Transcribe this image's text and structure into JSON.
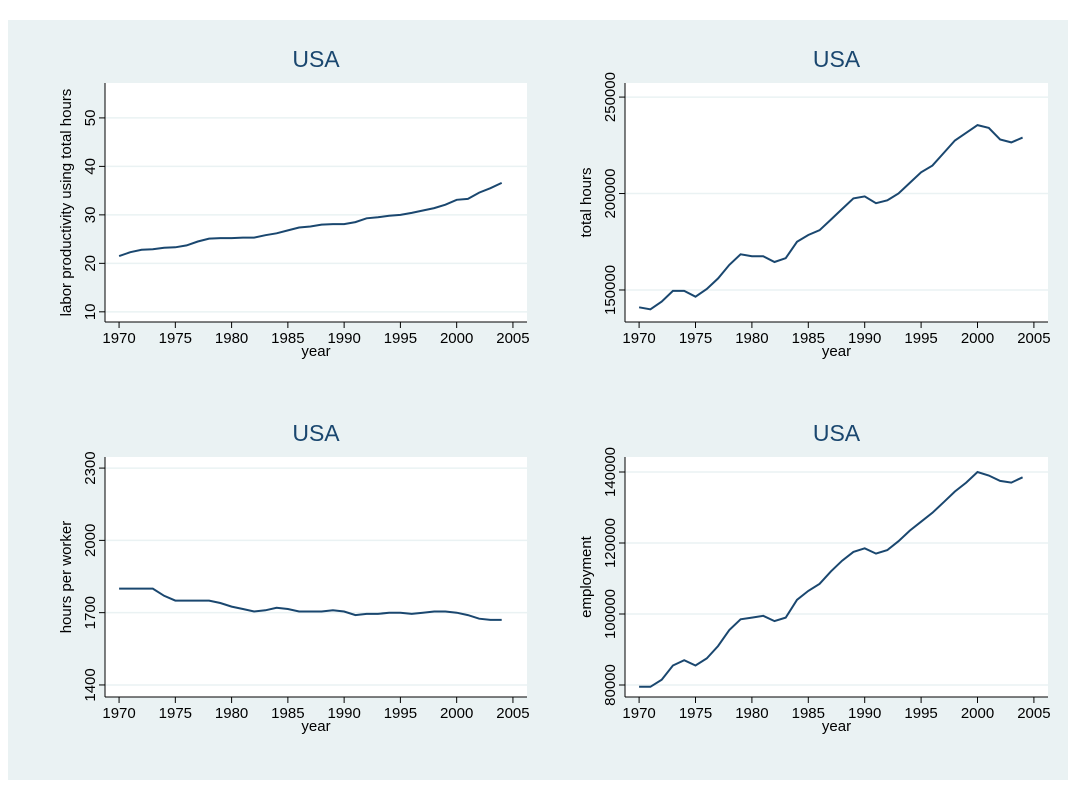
{
  "chart_data": [
    {
      "type": "line",
      "title": "USA",
      "x_label": "year",
      "y_label": "labor productivity using total hours",
      "x": [
        1970,
        1971,
        1972,
        1973,
        1974,
        1975,
        1976,
        1977,
        1978,
        1979,
        1980,
        1981,
        1982,
        1983,
        1984,
        1985,
        1986,
        1987,
        1988,
        1989,
        1990,
        1991,
        1992,
        1993,
        1994,
        1995,
        1996,
        1997,
        1998,
        1999,
        2000,
        2001,
        2002,
        2003,
        2004
      ],
      "values": [
        21.5,
        22.3,
        22.8,
        22.9,
        23.2,
        23.3,
        23.7,
        24.5,
        25.1,
        25.2,
        25.2,
        25.3,
        25.3,
        25.8,
        26.2,
        26.8,
        27.4,
        27.6,
        28.0,
        28.1,
        28.1,
        28.5,
        29.3,
        29.5,
        29.8,
        30.0,
        30.4,
        30.9,
        31.4,
        32.1,
        33.1,
        33.3,
        34.6,
        35.5,
        36.6
      ],
      "color": "#1a476f",
      "xlim": [
        1968.75,
        2006.25
      ],
      "xticks": [
        1970,
        1975,
        1980,
        1985,
        1990,
        1995,
        2000,
        2005
      ],
      "ylim": [
        7.9,
        57.2
      ],
      "yticks": [
        10,
        20,
        30,
        40,
        50
      ],
      "grid": true
    },
    {
      "type": "line",
      "title": "USA",
      "x_label": "year",
      "y_label": "total hours",
      "x": [
        1970,
        1971,
        1972,
        1973,
        1974,
        1975,
        1976,
        1977,
        1978,
        1979,
        1980,
        1981,
        1982,
        1983,
        1984,
        1985,
        1986,
        1987,
        1988,
        1989,
        1990,
        1991,
        1992,
        1993,
        1994,
        1995,
        1996,
        1997,
        1998,
        1999,
        2000,
        2001,
        2002,
        2003,
        2004
      ],
      "values": [
        141000,
        140000,
        144000,
        149500,
        149500,
        146500,
        150500,
        156000,
        163000,
        168500,
        167500,
        167500,
        164500,
        166500,
        175000,
        178500,
        181000,
        186500,
        192000,
        197500,
        198500,
        195000,
        196500,
        200000,
        205500,
        211000,
        214500,
        221000,
        227500,
        231500,
        235500,
        234000,
        228000,
        226500,
        229000
      ],
      "color": "#1a476f",
      "xlim": [
        1968.75,
        2006.25
      ],
      "xticks": [
        1970,
        1975,
        1980,
        1985,
        1990,
        1995,
        2000,
        2005
      ],
      "ylim": [
        133400,
        257300
      ],
      "yticks": [
        150000,
        200000,
        250000
      ],
      "grid": true
    },
    {
      "type": "line",
      "title": "USA",
      "x_label": "year",
      "y_label": "hours per worker",
      "x": [
        1970,
        1971,
        1972,
        1973,
        1974,
        1975,
        1976,
        1977,
        1978,
        1979,
        1980,
        1981,
        1982,
        1983,
        1984,
        1985,
        1986,
        1987,
        1988,
        1989,
        1990,
        1991,
        1992,
        1993,
        1994,
        1995,
        1996,
        1997,
        1998,
        1999,
        2000,
        2001,
        2002,
        2003,
        2004
      ],
      "values": [
        1800,
        1800,
        1800,
        1800,
        1770,
        1750,
        1750,
        1750,
        1750,
        1740,
        1725,
        1715,
        1705,
        1710,
        1720,
        1715,
        1705,
        1705,
        1705,
        1710,
        1705,
        1690,
        1695,
        1695,
        1700,
        1700,
        1695,
        1700,
        1705,
        1705,
        1700,
        1690,
        1675,
        1670,
        1670
      ],
      "color": "#1a476f",
      "xlim": [
        1968.75,
        2006.25
      ],
      "xticks": [
        1970,
        1975,
        1980,
        1985,
        1990,
        1995,
        2000,
        2005
      ],
      "ylim": [
        1350,
        2346
      ],
      "yticks": [
        1400,
        1700,
        2000,
        2300
      ],
      "grid": true
    },
    {
      "type": "line",
      "title": "USA",
      "x_label": "year",
      "y_label": "employment",
      "x": [
        1970,
        1971,
        1972,
        1973,
        1974,
        1975,
        1976,
        1977,
        1978,
        1979,
        1980,
        1981,
        1982,
        1983,
        1984,
        1985,
        1986,
        1987,
        1988,
        1989,
        1990,
        1991,
        1992,
        1993,
        1994,
        1995,
        1996,
        1997,
        1998,
        1999,
        2000,
        2001,
        2002,
        2003,
        2004
      ],
      "values": [
        79500,
        79500,
        81500,
        85500,
        87000,
        85500,
        87500,
        91000,
        95500,
        98500,
        99000,
        99500,
        98000,
        99000,
        104000,
        106500,
        108500,
        112000,
        115000,
        117500,
        118500,
        117000,
        118000,
        120500,
        123500,
        126000,
        128500,
        131500,
        134500,
        137000,
        140000,
        139000,
        137500,
        137000,
        138500
      ],
      "color": "#1a476f",
      "xlim": [
        1968.75,
        2006.25
      ],
      "xticks": [
        1970,
        1975,
        1980,
        1985,
        1990,
        1995,
        2000,
        2005
      ],
      "ylim": [
        76620,
        144225
      ],
      "yticks": [
        80000,
        100000,
        120000,
        140000
      ],
      "grid": true
    }
  ]
}
